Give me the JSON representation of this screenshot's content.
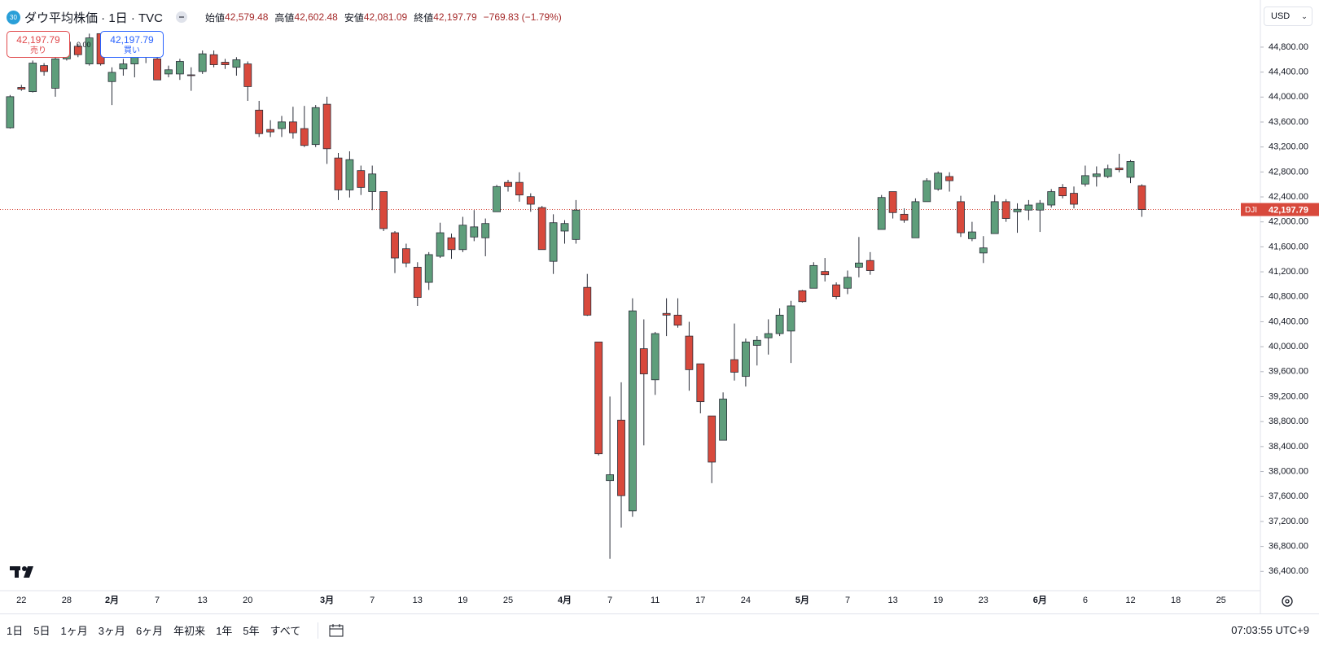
{
  "header": {
    "badge": "30",
    "title": "ダウ平均株価 · 1日 · TVC",
    "open_label": "始値",
    "open": "42,579.48",
    "high_label": "高値",
    "high": "42,602.48",
    "low_label": "安値",
    "low": "42,081.09",
    "close_label": "終値",
    "close": "42,197.79",
    "change": "−769.83 (−1.79%)"
  },
  "currency": "USD",
  "sell": {
    "price": "42,197.79",
    "label": "売り"
  },
  "spread": "0.00",
  "buy": {
    "price": "42,197.79",
    "label": "買い"
  },
  "toolbar": {
    "ranges": [
      "1日",
      "5日",
      "1ヶ月",
      "3ヶ月",
      "6ヶ月",
      "年初来",
      "1年",
      "5年",
      "すべて"
    ],
    "time": "07:03:55 UTC+9"
  },
  "chart_data": {
    "type": "candlestick",
    "symbol_tag": "DJI",
    "last_price": {
      "value": 42197.79,
      "label": "42,197.79"
    },
    "up_color": "#5e9e7b",
    "down_color": "#d8493c",
    "last_color": "#d8493c",
    "categories": [
      null,
      "22",
      null,
      null,
      null,
      "28",
      null,
      null,
      null,
      "2月",
      null,
      null,
      null,
      "7",
      null,
      null,
      null,
      "13",
      null,
      null,
      null,
      "20",
      null,
      null,
      null,
      null,
      null,
      null,
      "3月",
      null,
      null,
      null,
      "7",
      null,
      null,
      null,
      "13",
      null,
      null,
      null,
      "19",
      null,
      null,
      null,
      "25",
      null,
      null,
      null,
      null,
      "4月",
      null,
      null,
      null,
      "7",
      null,
      null,
      null,
      "11",
      null,
      null,
      null,
      "17",
      null,
      null,
      null,
      "24",
      null,
      null,
      null,
      null,
      "5月",
      null,
      null,
      null,
      "7",
      null,
      null,
      null,
      "13",
      null,
      null,
      null,
      "19",
      null,
      null,
      null,
      "23",
      null,
      null,
      null,
      null,
      "6月",
      null,
      null,
      null,
      "6",
      null,
      null,
      null,
      "12",
      null,
      null,
      null,
      "18",
      null,
      null,
      null,
      "25"
    ],
    "open": [
      43508,
      44154,
      44087,
      44504,
      44141,
      44612,
      44814,
      44531,
      45016,
      44248,
      44450,
      44531,
      44639,
      44612,
      44370,
      44370,
      44356,
      44410,
      44679,
      44558,
      44477,
      44531,
      43791,
      43481,
      43495,
      43602,
      43495,
      43239,
      43885,
      43024,
      42512,
      42822,
      42485,
      42485,
      41826,
      41570,
      41274,
      41031,
      41449,
      41745,
      41556,
      41758,
      41745,
      42162,
      42633,
      42633,
      42404,
      42229,
      41368,
      41853,
      41718,
      40951,
      40076,
      37855,
      38824,
      37370,
      39968,
      39470,
      40533,
      40506,
      40170,
      39726,
      38891,
      38501,
      39793,
      39524,
      40022,
      40143,
      40210,
      40251,
      40897,
      40937,
      41206,
      40991,
      40937,
      41274,
      41381,
      41879,
      42485,
      42122,
      41745,
      42324,
      42526,
      42727,
      42324,
      41731,
      41502,
      41812,
      42324,
      42162,
      42189,
      42189,
      42270,
      42552,
      42458,
      42606,
      42727,
      42727,
      42862,
      42714,
      42579.48,
      null,
      null,
      null,
      null,
      null,
      null,
      null
    ],
    "high": [
      44033,
      44195,
      44585,
      44544,
      44720,
      44948,
      44854,
      45016,
      45016,
      44477,
      44612,
      44746,
      44814,
      44679,
      44504,
      44612,
      44477,
      44746,
      44746,
      44612,
      44639,
      44571,
      43939,
      43629,
      43697,
      43845,
      43858,
      43872,
      44006,
      43104,
      43131,
      42902,
      42902,
      42485,
      41853,
      41651,
      41354,
      41516,
      41987,
      41812,
      42081,
      42189,
      42054,
      42593,
      42674,
      42795,
      42458,
      42256,
      42122,
      42027,
      42350,
      41166,
      40076,
      39201,
      39430,
      40776,
      40439,
      40237,
      40776,
      40776,
      40399,
      39726,
      38891,
      39268,
      40372,
      40130,
      40170,
      40439,
      40614,
      40735,
      40910,
      41354,
      41422,
      41031,
      41220,
      41758,
      41516,
      42431,
      42485,
      42216,
      42377,
      42700,
      42808,
      42795,
      42418,
      42001,
      41772,
      42431,
      42364,
      42297,
      42350,
      42350,
      42526,
      42606,
      42566,
      42902,
      42889,
      42916,
      43091,
      42990,
      42602.48,
      null,
      null,
      null,
      null,
      null,
      null,
      null
    ],
    "low": [
      43495,
      44100,
      44073,
      44343,
      44006,
      44585,
      44639,
      44504,
      44504,
      43872,
      44343,
      44316,
      44544,
      44275,
      44316,
      44275,
      44100,
      44370,
      44477,
      44450,
      44343,
      43939,
      43360,
      43360,
      43360,
      43333,
      43199,
      43199,
      42929,
      42350,
      42391,
      42431,
      42189,
      41853,
      41180,
      41274,
      40654,
      40910,
      41422,
      41408,
      41516,
      41691,
      41449,
      42162,
      42485,
      42324,
      42162,
      41556,
      41166,
      41651,
      41651,
      40493,
      38258,
      36603,
      37101,
      37276,
      38420,
      39228,
      40170,
      40305,
      39295,
      38932,
      37814,
      38501,
      39457,
      39362,
      39699,
      39874,
      40170,
      39739,
      40708,
      40937,
      41045,
      40762,
      40843,
      41112,
      41153,
      41879,
      42054,
      41987,
      41745,
      42324,
      42499,
      42485,
      41758,
      41691,
      41341,
      41812,
      42001,
      41826,
      42027,
      41839,
      42229,
      42377,
      42216,
      42566,
      42566,
      42700,
      42795,
      42620,
      42081.09,
      null,
      null,
      null,
      null,
      null,
      null,
      null
    ],
    "close": [
      44006,
      44127,
      44544,
      44410,
      44612,
      44881,
      44679,
      44948,
      44531,
      44396,
      44531,
      44639,
      44746,
      44275,
      44437,
      44571,
      44343,
      44693,
      44518,
      44518,
      44598,
      44168,
      43414,
      43441,
      43602,
      43427,
      43225,
      43831,
      43172,
      42512,
      42997,
      42552,
      42768,
      41893,
      41422,
      41341,
      40789,
      41476,
      41826,
      41556,
      41947,
      41920,
      41974,
      42566,
      42566,
      42431,
      42283,
      41556,
      41987,
      41974,
      42189,
      40506,
      38285,
      37949,
      37613,
      40574,
      39564,
      40210,
      40506,
      40345,
      39632,
      39120,
      38151,
      39161,
      39591,
      40076,
      40103,
      40210,
      40506,
      40654,
      40722,
      41301,
      41153,
      40803,
      41112,
      41341,
      41220,
      42391,
      42149,
      42027,
      42324,
      42660,
      42781,
      42660,
      41826,
      41839,
      41583,
      42324,
      42054,
      42202,
      42270,
      42297,
      42485,
      42418,
      42283,
      42741,
      42768,
      42849,
      42835,
      42968,
      42197.79,
      null,
      null,
      null,
      null,
      null,
      null,
      null
    ],
    "ylim": [
      36130,
      45490
    ],
    "yticks": [
      {
        "value": 36400,
        "label": "36,400.00"
      },
      {
        "value": 36800,
        "label": "36,800.00"
      },
      {
        "value": 37200,
        "label": "37,200.00"
      },
      {
        "value": 37600,
        "label": "37,600.00"
      },
      {
        "value": 38000,
        "label": "38,000.00"
      },
      {
        "value": 38400,
        "label": "38,400.00"
      },
      {
        "value": 38800,
        "label": "38,800.00"
      },
      {
        "value": 39200,
        "label": "39,200.00"
      },
      {
        "value": 39600,
        "label": "39,600.00"
      },
      {
        "value": 40000,
        "label": "40,000.00"
      },
      {
        "value": 40400,
        "label": "40,400.00"
      },
      {
        "value": 40800,
        "label": "40,800.00"
      },
      {
        "value": 41200,
        "label": "41,200.00"
      },
      {
        "value": 41600,
        "label": "41,600.00"
      },
      {
        "value": 42000,
        "label": "42,000.00"
      },
      {
        "value": 42400,
        "label": "42,400.00"
      },
      {
        "value": 42800,
        "label": "42,800.00"
      },
      {
        "value": 43200,
        "label": "43,200.00"
      },
      {
        "value": 43600,
        "label": "43,600.00"
      },
      {
        "value": 44000,
        "label": "44,000.00"
      },
      {
        "value": 44400,
        "label": "44,400.00"
      },
      {
        "value": 44800,
        "label": "44,800.00"
      }
    ],
    "grid": false
  }
}
